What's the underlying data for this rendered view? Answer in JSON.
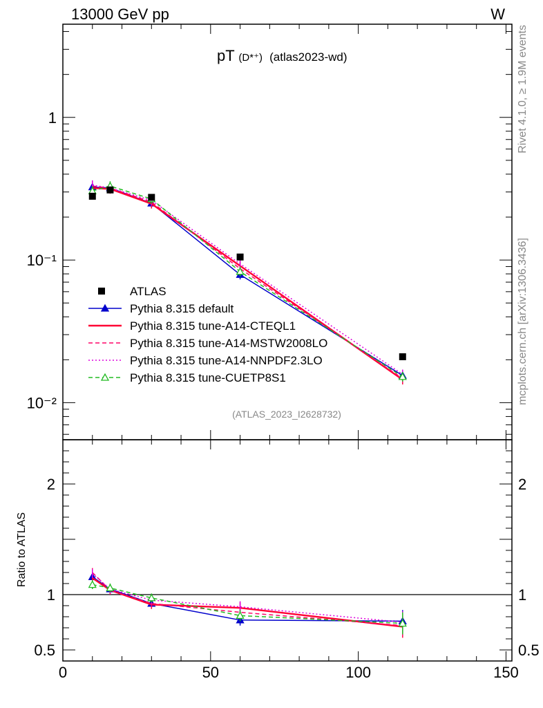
{
  "header": {
    "energy_label": "13000 GeV pp",
    "process_label": "W"
  },
  "side": {
    "rivet_label": "Rivet 4.1.0, ≥ 1.9M events",
    "mcplots_label": "mcplots.cern.ch [arXiv:1306.3436]"
  },
  "chart_data": {
    "type": "line",
    "title_main": "pT",
    "title_sub": "(D*⁺)",
    "title_tag": "(atlas2023-wd)",
    "analysis_id": "(ATLAS_2023_I2628732)",
    "x": [
      10,
      16,
      30,
      60,
      115
    ],
    "xlim": [
      0,
      152
    ],
    "ylim_log": [
      0.0055,
      4.5
    ],
    "x_ticks": [
      "0",
      "50",
      "100",
      "150"
    ],
    "y_ticks_main": [
      "10⁻²",
      "10⁻¹",
      "1"
    ],
    "ratio": {
      "ylabel": "Ratio to ATLAS",
      "ylim": [
        0.4,
        2.4
      ],
      "y_ticks": [
        "0.5",
        "1",
        "2"
      ]
    },
    "data": {
      "name": "ATLAS",
      "color": "#000000",
      "values": [
        0.28,
        0.31,
        0.275,
        0.105,
        0.021
      ]
    },
    "series": [
      {
        "name": "Pythia 8.315 default",
        "color": "#0000cc",
        "style": "solid",
        "marker": "triangle-filled",
        "values": [
          0.325,
          0.32,
          0.25,
          0.079,
          0.0155
        ],
        "ratio": [
          1.16,
          1.05,
          0.92,
          0.77,
          0.76
        ]
      },
      {
        "name": "Pythia 8.315 tune-A14-CTEQL1",
        "color": "#ff0033",
        "style": "solid-thick",
        "marker": "none",
        "values": [
          0.32,
          0.315,
          0.248,
          0.091,
          0.0145
        ],
        "ratio": [
          1.15,
          1.04,
          0.91,
          0.88,
          0.71
        ]
      },
      {
        "name": "Pythia 8.315 tune-A14-MSTW2008LO",
        "color": "#ff0066",
        "style": "dashed",
        "marker": "none",
        "values": [
          0.33,
          0.32,
          0.255,
          0.087,
          0.0148
        ],
        "ratio": [
          1.2,
          1.04,
          0.92,
          0.84,
          0.72
        ]
      },
      {
        "name": "Pythia 8.315 tune-A14-NNPDF2.3LO",
        "color": "#dd00dd",
        "style": "dotted",
        "marker": "none",
        "values": [
          0.335,
          0.32,
          0.262,
          0.094,
          0.0158
        ],
        "ratio": [
          1.19,
          1.05,
          0.95,
          0.89,
          0.75
        ]
      },
      {
        "name": "Pythia 8.315 tune-CUETP8S1",
        "color": "#22bb22",
        "style": "dashed",
        "marker": "triangle-open",
        "values": [
          0.305,
          0.33,
          0.268,
          0.083,
          0.0152
        ],
        "ratio": [
          1.09,
          1.06,
          0.97,
          0.81,
          0.74
        ]
      }
    ]
  }
}
